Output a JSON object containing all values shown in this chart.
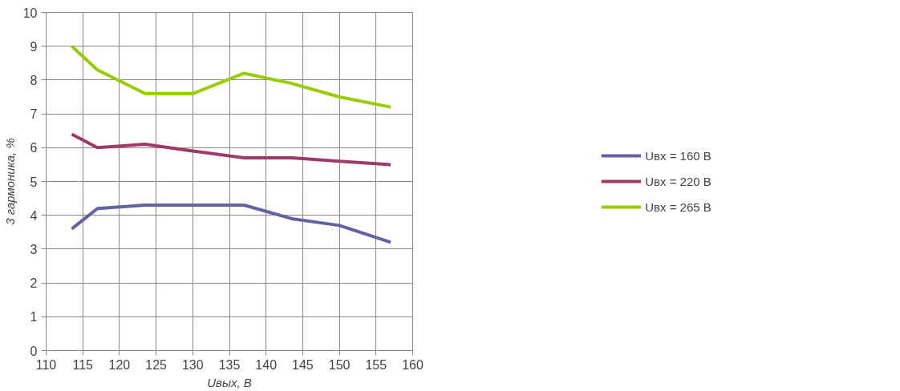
{
  "chart_data": {
    "type": "line",
    "xlabel": "Uвых, В",
    "ylabel": "3 гармоника, %",
    "xlim": [
      110,
      160
    ],
    "xticks": [
      110,
      115,
      120,
      125,
      130,
      135,
      140,
      145,
      150,
      155,
      160
    ],
    "ylim": [
      0,
      10
    ],
    "yticks": [
      0,
      1,
      2,
      3,
      4,
      5,
      6,
      7,
      8,
      9,
      10
    ],
    "grid": true,
    "legend": "right",
    "line_style": "solid",
    "series": [
      {
        "name": "Uвх = 160 В",
        "color": "#6262a0",
        "x": [
          113.5,
          117,
          123.5,
          130,
          137,
          143.5,
          150,
          157
        ],
        "values": [
          3.6,
          4.2,
          4.3,
          4.3,
          4.3,
          3.9,
          3.7,
          3.2
        ]
      },
      {
        "name": "Uвх = 220 В",
        "color": "#9c3a6a",
        "x": [
          113.5,
          117,
          123.5,
          130,
          137,
          143.5,
          150,
          157
        ],
        "values": [
          6.4,
          6.0,
          6.1,
          5.9,
          5.7,
          5.7,
          5.6,
          5.5
        ]
      },
      {
        "name": "Uвх = 265 В",
        "color": "#99cc00",
        "x": [
          113.5,
          117,
          123.5,
          130,
          137,
          143.5,
          150,
          157
        ],
        "values": [
          9.0,
          8.3,
          7.6,
          7.6,
          8.2,
          7.9,
          7.5,
          7.2
        ]
      }
    ]
  }
}
